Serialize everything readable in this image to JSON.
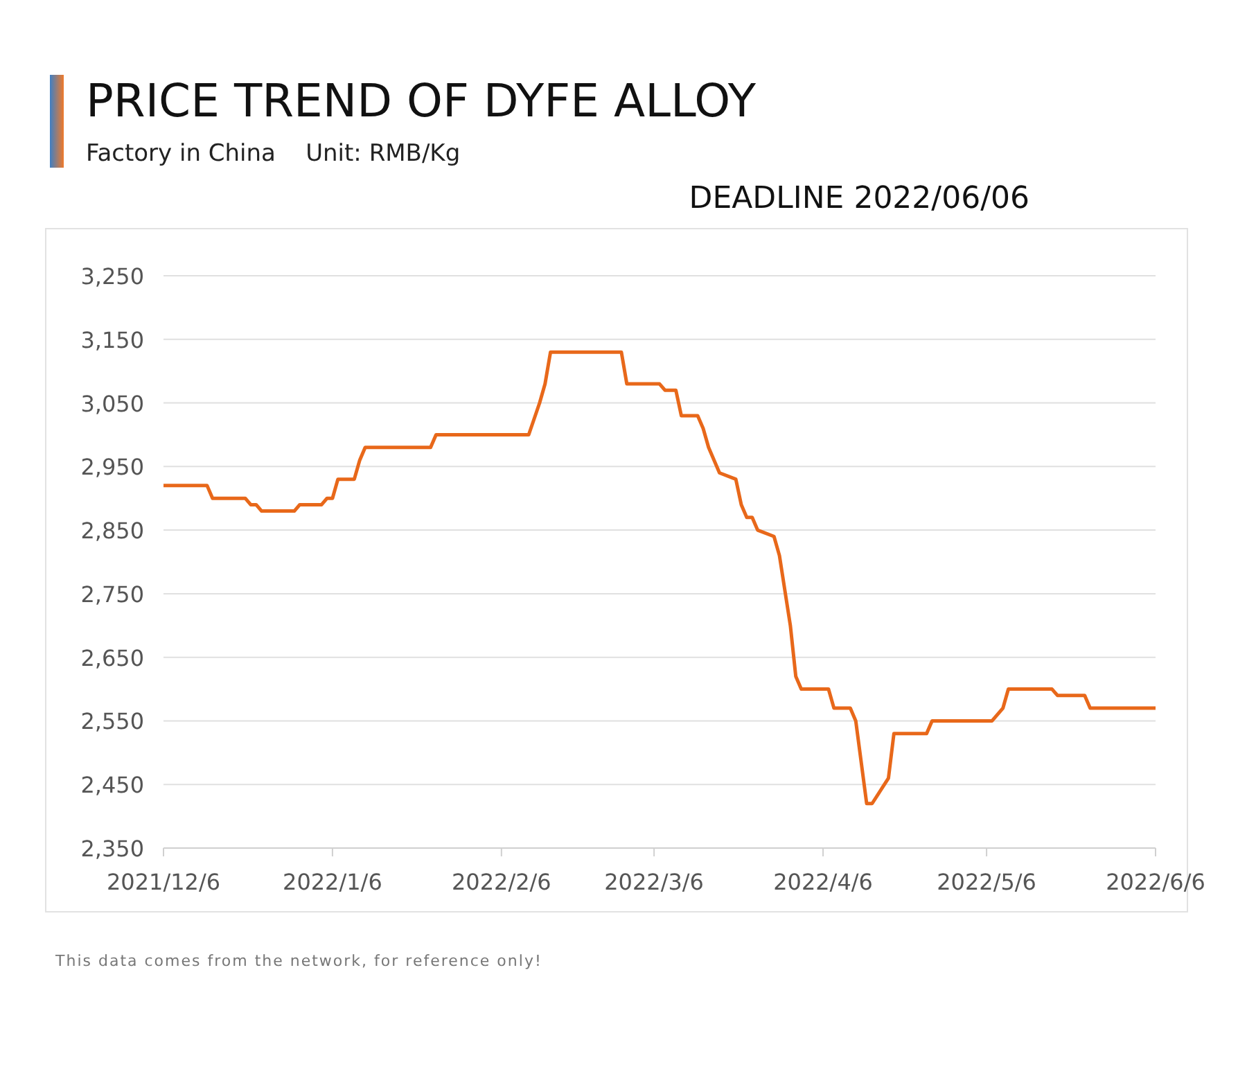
{
  "chart_data": {
    "type": "line",
    "title": "PRICE TREND OF DYFE ALLOY",
    "subtitle": "Factory in China    Unit: RMB/Kg",
    "annotations": [
      "DEADLINE 2022/06/06",
      "This data comes from the network, for reference only!"
    ],
    "x": [
      "2021-12-06",
      "2021-12-14",
      "2021-12-15",
      "2021-12-21",
      "2021-12-22",
      "2021-12-23",
      "2021-12-24",
      "2021-12-30",
      "2021-12-31",
      "2022-01-04",
      "2022-01-05",
      "2022-01-06",
      "2022-01-07",
      "2022-01-10",
      "2022-01-11",
      "2022-01-12",
      "2022-01-24",
      "2022-01-25",
      "2022-02-11",
      "2022-02-13",
      "2022-02-14",
      "2022-02-15",
      "2022-02-28",
      "2022-03-01",
      "2022-03-07",
      "2022-03-08",
      "2022-03-10",
      "2022-03-11",
      "2022-03-14",
      "2022-03-15",
      "2022-03-16",
      "2022-03-18",
      "2022-03-21",
      "2022-03-22",
      "2022-03-23",
      "2022-03-24",
      "2022-03-25",
      "2022-03-28",
      "2022-03-29",
      "2022-03-31",
      "2022-04-01",
      "2022-04-02",
      "2022-04-07",
      "2022-04-08",
      "2022-04-11",
      "2022-04-12",
      "2022-04-14",
      "2022-04-15",
      "2022-04-18",
      "2022-04-19",
      "2022-04-25",
      "2022-04-26",
      "2022-05-07",
      "2022-05-09",
      "2022-05-10",
      "2022-05-18",
      "2022-05-19",
      "2022-05-24",
      "2022-05-25",
      "2022-06-06"
    ],
    "series": [
      {
        "color": "#e8681a",
        "values": [
          2920,
          2920,
          2900,
          2900,
          2890,
          2890,
          2880,
          2880,
          2890,
          2890,
          2900,
          2900,
          2930,
          2930,
          2960,
          2980,
          2980,
          3000,
          3000,
          3050,
          3080,
          3130,
          3130,
          3080,
          3080,
          3070,
          3070,
          3030,
          3030,
          3010,
          2980,
          2940,
          2930,
          2890,
          2870,
          2870,
          2850,
          2840,
          2810,
          2700,
          2620,
          2600,
          2600,
          2570,
          2570,
          2550,
          2420,
          2420,
          2460,
          2530,
          2530,
          2550,
          2550,
          2570,
          2600,
          2600,
          2590,
          2590,
          2570,
          2570
        ]
      }
    ],
    "xlim": [
      "2021-12-06",
      "2022-06-06"
    ],
    "xticks": [
      {
        "value": "2021-12-06",
        "label": "2021/12/6"
      },
      {
        "value": "2022-01-06",
        "label": "2022/1/6"
      },
      {
        "value": "2022-02-06",
        "label": "2022/2/6"
      },
      {
        "value": "2022-03-06",
        "label": "2022/3/6"
      },
      {
        "value": "2022-04-06",
        "label": "2022/4/6"
      },
      {
        "value": "2022-05-06",
        "label": "2022/5/6"
      },
      {
        "value": "2022-06-06",
        "label": "2022/6/6"
      }
    ],
    "ylim": [
      2350,
      3250
    ],
    "yticks": [
      {
        "value": 2350,
        "label": "2,350"
      },
      {
        "value": 2450,
        "label": "2,450"
      },
      {
        "value": 2550,
        "label": "2,550"
      },
      {
        "value": 2650,
        "label": "2,650"
      },
      {
        "value": 2750,
        "label": "2,750"
      },
      {
        "value": 2850,
        "label": "2,850"
      },
      {
        "value": 2950,
        "label": "2,950"
      },
      {
        "value": 3050,
        "label": "3,050"
      },
      {
        "value": 3150,
        "label": "3,150"
      },
      {
        "value": 3250,
        "label": "3,250"
      }
    ],
    "grid": "y",
    "marker": "none",
    "line_style": "solid"
  }
}
